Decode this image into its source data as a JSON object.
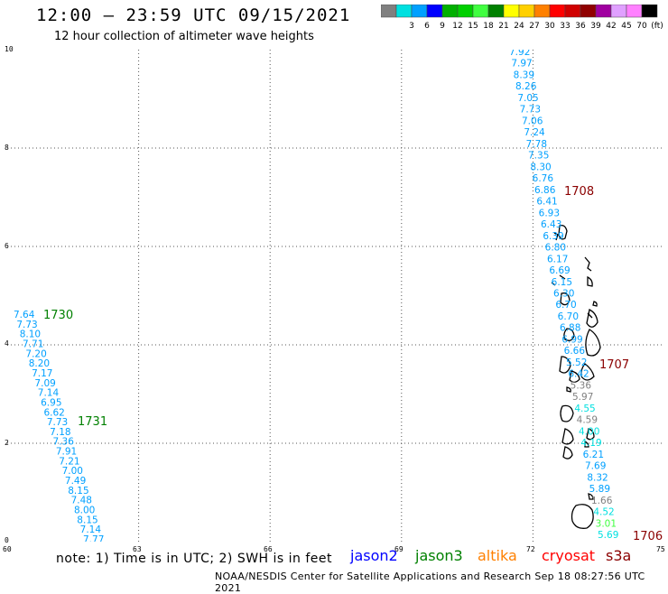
{
  "header": {
    "title": "12:00 – 23:59 UTC 09/15/2021",
    "subtitle": "12 hour collection of altimeter wave heights"
  },
  "legend": {
    "swatches": [
      {
        "color": "#808080",
        "label": ""
      },
      {
        "color": "#00e0e0",
        "label": "3"
      },
      {
        "color": "#00a0ff",
        "label": "6"
      },
      {
        "color": "#0000ff",
        "label": "9"
      },
      {
        "color": "#00b000",
        "label": "12"
      },
      {
        "color": "#00d000",
        "label": "15"
      },
      {
        "color": "#40ff40",
        "label": "18"
      },
      {
        "color": "#008000",
        "label": "21"
      },
      {
        "color": "#ffff00",
        "label": "24"
      },
      {
        "color": "#ffd000",
        "label": "27"
      },
      {
        "color": "#ff8000",
        "label": "30"
      },
      {
        "color": "#ff0000",
        "label": "33"
      },
      {
        "color": "#d00000",
        "label": "36"
      },
      {
        "color": "#900000",
        "label": "39"
      },
      {
        "color": "#a000a0",
        "label": "42"
      },
      {
        "color": "#e0a0ff",
        "label": "45"
      },
      {
        "color": "#ff80ff",
        "label": "70"
      },
      {
        "color": "#000000",
        "label": "(ft)"
      }
    ]
  },
  "map": {
    "x_ticks": [
      "60",
      "63",
      "66",
      "69",
      "72",
      "75"
    ],
    "y_ticks": [
      "0",
      "2",
      "4",
      "6",
      "8",
      "10"
    ],
    "lon_range": [
      60,
      75
    ],
    "lat_range": [
      0,
      10
    ],
    "track_right": {
      "values": [
        "7.92",
        "7.97",
        "8.39",
        "8.26",
        "7.05",
        "7.73",
        "7.06",
        "7.24",
        "7.78",
        "7.35",
        "8.30",
        "6.76",
        "6.86",
        "6.41",
        "6.93",
        "6.43",
        "6.39",
        "6.80",
        "6.17",
        "6.69",
        "6.15",
        "6.30",
        "6.70",
        "6.70",
        "6.88",
        "6.99",
        "6.66",
        "5.52",
        "6.42",
        "5.36",
        "5.97",
        "4.55",
        "4.59",
        "4.00",
        "4.19",
        "6.21",
        "7.69",
        "8.32",
        "5.89",
        "1.66",
        "4.52",
        "3.01",
        "5.69"
      ],
      "colors": [
        "#00a0ff",
        "#00a0ff",
        "#00a0ff",
        "#00a0ff",
        "#00a0ff",
        "#00a0ff",
        "#00a0ff",
        "#00a0ff",
        "#00a0ff",
        "#00a0ff",
        "#00a0ff",
        "#00a0ff",
        "#00a0ff",
        "#00a0ff",
        "#00a0ff",
        "#00a0ff",
        "#00a0ff",
        "#00a0ff",
        "#00a0ff",
        "#00a0ff",
        "#00a0ff",
        "#00a0ff",
        "#00a0ff",
        "#00a0ff",
        "#00a0ff",
        "#00a0ff",
        "#00a0ff",
        "#00a0ff",
        "#00a0ff",
        "#808080",
        "#808080",
        "#00e0e0",
        "#808080",
        "#00e0e0",
        "#00e0e0",
        "#00a0ff",
        "#00a0ff",
        "#00a0ff",
        "#00a0ff",
        "#808080",
        "#00e0e0",
        "#40ff40",
        "#00e0e0"
      ]
    },
    "track_left": {
      "values": [
        "7.64",
        "7.73",
        "8.10",
        "7.71",
        "7.20",
        "8.20",
        "7.17",
        "7.09",
        "7.14",
        "6.95",
        "6.62",
        "7.73",
        "7.18",
        "7.36",
        "7.91",
        "7.21",
        "7.00",
        "7.49",
        "8.15",
        "7.48",
        "8.00",
        "8.15",
        "7.14",
        "7.77"
      ]
    },
    "time_labels": [
      {
        "text": "1708",
        "color": "#8b0000"
      },
      {
        "text": "1707",
        "color": "#8b0000"
      },
      {
        "text": "1706",
        "color": "#8b0000"
      },
      {
        "text": "1730",
        "color": "#008000"
      },
      {
        "text": "1731",
        "color": "#008000"
      }
    ]
  },
  "footer": {
    "note": "note: 1) Time is in UTC; 2) SWH is in feet",
    "source": "NOAA/NESDIS Center for Satellite Applications and Research   Sep 18 08:27:56 UTC 2021",
    "satellites": [
      {
        "name": "jason2",
        "color": "#0000ff"
      },
      {
        "name": "jason3",
        "color": "#008000"
      },
      {
        "name": "altika",
        "color": "#ff8000"
      },
      {
        "name": "cryosat",
        "color": "#ff0000"
      },
      {
        "name": "s3a",
        "color": "#8b0000"
      }
    ]
  }
}
